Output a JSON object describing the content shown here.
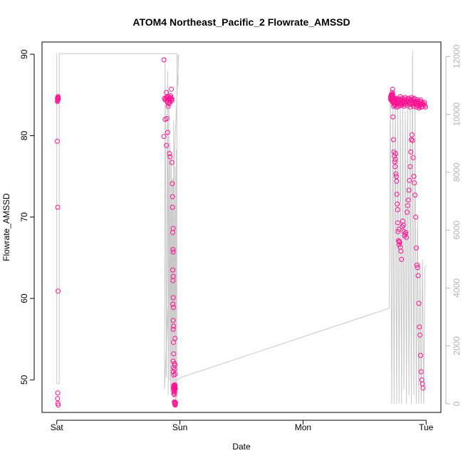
{
  "chart_data": {
    "type": "scatter",
    "title": "ATOM4 Northeast_Pacific_2 Flowrate_AMSSD",
    "xlabel": "Date",
    "ylabel": "Flowrate_AMSSD",
    "x_ticks": [
      "Sat",
      "Sun",
      "Mon",
      "Tue"
    ],
    "x_tick_values": [
      0,
      1,
      2,
      3
    ],
    "y_ticks": [
      "50",
      "60",
      "70",
      "80",
      "90"
    ],
    "ylim": [
      46,
      91.5
    ],
    "y2_ticks": [
      "0",
      "2000",
      "4000",
      "6000",
      "8000",
      "10000",
      "12000"
    ],
    "y2lim": [
      -300,
      12500
    ],
    "grid": false,
    "legend": "none",
    "point_color": "#ff1493",
    "line_color": "#c8c8c8",
    "series": [
      {
        "kind": "points",
        "axis": "left",
        "x": [
          0.005,
          0.008,
          0.01,
          0.012,
          0.006,
          0.009,
          0.011,
          0.004,
          0.007,
          0.01,
          0.008,
          0.006,
          0.009,
          0.012,
          0.005,
          0.01,
          0.87,
          0.88,
          0.875,
          0.885,
          0.89,
          0.895,
          0.9,
          0.905,
          0.91,
          0.915,
          0.92,
          0.925,
          0.93,
          0.935,
          0.89,
          0.9,
          0.91,
          0.92,
          0.93,
          0.895,
          0.905,
          0.915,
          0.925,
          0.935,
          0.88,
          0.87,
          0.89,
          0.9,
          0.915,
          0.92,
          0.935,
          0.938,
          0.94,
          0.94,
          0.945,
          0.942,
          0.944,
          0.946,
          0.942,
          0.945,
          0.944,
          0.946,
          0.943,
          0.947,
          0.945,
          0.948,
          0.946,
          0.947,
          0.949,
          0.945,
          0.948,
          0.946,
          0.95,
          0.948,
          0.947,
          0.95,
          0.952,
          0.95,
          0.955,
          0.953,
          0.955,
          0.958,
          0.952,
          0.956,
          0.954,
          0.957,
          0.955,
          0.958,
          0.96,
          0.955,
          0.958,
          0.956,
          0.96,
          0.962,
          0.958,
          0.96,
          0.955,
          0.958,
          0.96,
          0.962,
          0.958,
          0.96,
          0.962,
          0.965,
          0.96,
          0.962,
          0.958,
          2.71,
          2.712,
          2.715,
          2.718,
          2.72,
          2.722,
          2.725,
          2.728,
          2.715,
          2.718,
          2.72,
          2.722,
          2.725,
          2.72,
          2.725,
          2.72,
          2.722,
          2.718,
          2.728,
          2.73,
          2.74,
          2.735,
          2.738,
          2.742,
          2.745,
          2.75,
          2.755,
          2.76,
          2.765,
          2.77,
          2.775,
          2.78,
          2.785,
          2.79,
          2.795,
          2.8,
          2.805,
          2.81,
          2.815,
          2.82,
          2.825,
          2.83,
          2.835,
          2.84,
          2.845,
          2.85,
          2.855,
          2.86,
          2.865,
          2.87,
          2.875,
          2.88,
          2.885,
          2.89,
          2.895,
          2.9,
          2.905,
          2.91,
          2.915,
          2.92,
          2.925,
          2.93,
          2.935,
          2.94,
          2.945,
          2.95,
          2.955,
          2.96,
          2.965,
          2.97,
          2.975,
          2.98,
          2.985,
          2.99,
          2.995,
          2.73,
          2.735,
          2.738,
          2.742,
          2.745,
          2.748,
          2.75,
          2.752,
          2.755,
          2.758,
          2.76,
          2.762,
          2.765,
          2.768,
          2.77,
          2.772,
          2.775,
          2.778,
          2.78,
          2.782,
          2.785,
          2.79,
          2.795,
          2.8,
          2.805,
          2.81,
          2.815,
          2.82,
          2.825,
          2.83,
          2.835,
          2.84,
          2.845,
          2.85,
          2.855,
          2.86,
          2.865,
          2.87,
          2.875,
          2.88,
          2.885,
          2.89,
          2.895,
          2.9,
          2.905,
          2.91,
          2.915,
          2.92,
          2.925,
          2.93,
          2.935,
          2.94,
          2.945,
          2.95,
          2.955,
          2.96,
          2.965,
          2.97,
          2.975,
          2.725,
          2.728,
          2.73,
          2.733,
          2.736,
          2.74,
          2.742,
          2.745,
          2.748,
          2.75,
          2.755,
          2.76,
          2.765,
          2.77,
          2.775,
          2.78,
          2.785,
          2.79,
          2.795,
          2.8,
          2.805,
          2.81,
          2.82,
          2.83,
          2.84,
          2.85,
          2.86,
          2.87,
          2.88,
          2.89,
          2.9,
          2.91,
          2.915,
          2.92,
          2.925,
          2.93,
          2.935,
          2.94,
          2.945,
          2.95,
          2.96
        ],
        "y": [
          84.6,
          84.4,
          84.7,
          84.5,
          84.3,
          84.6,
          84.5,
          79.3,
          71.2,
          60.9,
          48.4,
          47.7,
          47.1,
          46.9,
          84.2,
          84.8,
          89.3,
          84.4,
          84.6,
          84.5,
          84.7,
          84.3,
          84.6,
          84.8,
          84.5,
          84.4,
          84.6,
          84.7,
          84.5,
          84.3,
          85.3,
          84.1,
          83.9,
          84.2,
          85.7,
          82.1,
          83.6,
          84.0,
          84.9,
          84.5,
          82.0,
          79.9,
          78.8,
          80.4,
          77.8,
          77.4,
          76.7,
          74.1,
          72.5,
          71.2,
          68.6,
          68.1,
          66.0,
          65.7,
          63.5,
          62.7,
          62.2,
          60.1,
          59.3,
          58.9,
          57.3,
          56.6,
          56.2,
          54.6,
          53.2,
          52.3,
          51.5,
          51.0,
          50.6,
          49.3,
          49.0,
          48.8,
          48.6,
          48.3,
          49.2,
          49.0,
          48.9,
          49.1,
          48.7,
          49.1,
          49.0,
          48.9,
          47.3,
          47.1,
          47.0,
          48.2,
          48.5,
          49.3,
          49.0,
          48.9,
          47.2,
          55.1,
          52.0,
          51.3,
          51.8,
          50.7,
          49.4,
          49.2,
          48.9,
          47.2,
          47.0,
          46.9,
          47.1,
          84.5,
          84.8,
          85.0,
          84.7,
          84.3,
          84.9,
          85.3,
          85.7,
          84.6,
          84.9,
          84.4,
          84.8,
          85.1,
          84.5,
          84.2,
          84.7,
          84.6,
          84.3,
          85.0,
          84.1,
          84.5,
          84.2,
          84.6,
          84.4,
          84.0,
          84.3,
          84.5,
          84.1,
          84.6,
          84.2,
          83.9,
          84.3,
          84.5,
          84.8,
          84.0,
          84.4,
          84.6,
          84.3,
          83.8,
          84.2,
          84.5,
          84.7,
          83.9,
          84.3,
          84.5,
          84.1,
          84.4,
          84.6,
          84.2,
          83.9,
          84.4,
          84.7,
          84.3,
          84.0,
          84.4,
          84.6,
          84.2,
          84.5,
          84.0,
          83.8,
          84.1,
          84.4,
          84.2,
          84.0,
          83.7,
          84.2,
          84.4,
          84.1,
          83.9,
          83.6,
          84.0,
          83.8,
          84.1,
          83.7,
          83.5,
          82.3,
          79.5,
          78.0,
          77.5,
          76.8,
          76.2,
          77.1,
          77.8,
          75.3,
          75.0,
          74.4,
          72.8,
          71.6,
          70.9,
          69.3,
          68.2,
          67.1,
          68.5,
          66.6,
          67.0,
          66.9,
          66.3,
          65.8,
          64.8,
          68.8,
          69.5,
          69.0,
          68.2,
          67.7,
          67.9,
          68.1,
          67.5,
          70.6,
          71.4,
          72.1,
          73.3,
          74.5,
          76.2,
          78.0,
          79.5,
          80.1,
          79.4,
          77.3,
          75.0,
          74.2,
          72.7,
          70.0,
          66.2,
          64.1,
          63.8,
          62.8,
          59.4,
          56.5,
          55.5,
          53.0,
          51.0,
          50.0,
          49.5,
          49.0,
          84.2,
          84.9,
          84.6,
          84.0,
          83.6,
          84.3,
          83.8,
          84.5,
          83.7,
          84.1,
          84.4,
          83.5,
          83.9,
          84.2,
          83.6,
          84.0,
          84.3,
          83.7,
          84.1,
          83.8,
          84.3,
          84.0,
          83.6,
          83.9,
          84.2,
          83.7,
          84.0,
          83.5,
          83.8,
          84.1,
          83.6,
          83.9,
          84.2,
          83.5,
          83.8,
          84.0,
          83.7,
          83.4,
          83.6,
          83.9,
          83.5
        ]
      },
      {
        "kind": "line",
        "axis": "right",
        "x": [
          0.0,
          0.0,
          0.02,
          0.02,
          0.975,
          0.975,
          0.975,
          0.985,
          0.985,
          0.99,
          0.99,
          0.875,
          0.88,
          0.89,
          0.9,
          0.905,
          0.91,
          0.915,
          0.92,
          0.925,
          0.93,
          0.935,
          0.94,
          0.945,
          0.95,
          0.955,
          0.96,
          0.965,
          0.97,
          0.975,
          0.975,
          1.0,
          2.7,
          2.7,
          2.71,
          2.72,
          2.73,
          2.74,
          2.75,
          2.76,
          2.77,
          2.78,
          2.79,
          2.8,
          2.81,
          2.82,
          2.83,
          2.84,
          2.85,
          2.86,
          2.87,
          2.88,
          2.89,
          2.9,
          2.91,
          2.92,
          2.93,
          2.94,
          2.95,
          2.96,
          2.97,
          2.98,
          2.99,
          3.0
        ],
        "y": [
          12100,
          700,
          700,
          12100,
          12100,
          700,
          11000,
          11000,
          12050,
          12050,
          12050,
          500,
          12000,
          900,
          11500,
          300,
          10800,
          800,
          9000,
          400,
          8600,
          300,
          7800,
          200,
          9800,
          300,
          8200,
          0,
          8800,
          0,
          800,
          900,
          3300,
          3300,
          10900,
          0,
          10400,
          0,
          10800,
          0,
          10300,
          0,
          10400,
          0,
          10600,
          500,
          10100,
          0,
          10500,
          300,
          10200,
          0,
          12200,
          300,
          10400,
          0,
          6500,
          0,
          4900,
          0,
          5000,
          0,
          4700,
          4800
        ]
      }
    ]
  }
}
